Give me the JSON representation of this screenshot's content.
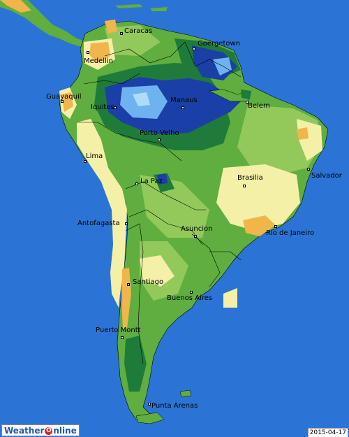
{
  "map": {
    "title": "",
    "date": "2015-04-17",
    "logo": {
      "part1": "Weather",
      "part2": "nline"
    },
    "colors": {
      "ocean": "#2b74d6",
      "land_green": "#5fae3f",
      "land_light_green": "#93c95b",
      "land_pale": "#f5f0a8",
      "land_orange": "#f0b64b",
      "forest_dark": "#1f7b3a",
      "wet_blue": "#1a3fa6",
      "wet_light": "#6fb2f0"
    },
    "cities": [
      {
        "id": "caracas",
        "name": "Caracas"
      },
      {
        "id": "goergetown",
        "name": "Goergetown"
      },
      {
        "id": "medellin",
        "name": "Medellin"
      },
      {
        "id": "guayaquil",
        "name": "Guayaquil"
      },
      {
        "id": "iquitos",
        "name": "Iquitos"
      },
      {
        "id": "manaus",
        "name": "Manaus"
      },
      {
        "id": "belem",
        "name": "Belem"
      },
      {
        "id": "porto-velho",
        "name": "Porto Velho"
      },
      {
        "id": "salvador",
        "name": "Salvador"
      },
      {
        "id": "lima",
        "name": "Lima"
      },
      {
        "id": "brasilia",
        "name": "Brasilia"
      },
      {
        "id": "la-paz",
        "name": "La Paz"
      },
      {
        "id": "antofagasta",
        "name": "Antofagasta"
      },
      {
        "id": "asuncion",
        "name": "Asuncion"
      },
      {
        "id": "rio-de-janeiro",
        "name": "Rio de Janeiro"
      },
      {
        "id": "santiago",
        "name": "Santiago"
      },
      {
        "id": "buenos-aires",
        "name": "Buenos Aires"
      },
      {
        "id": "puerto-montt",
        "name": "Puerto Montt"
      },
      {
        "id": "punta-arenas",
        "name": "Punta Arenas"
      }
    ]
  }
}
